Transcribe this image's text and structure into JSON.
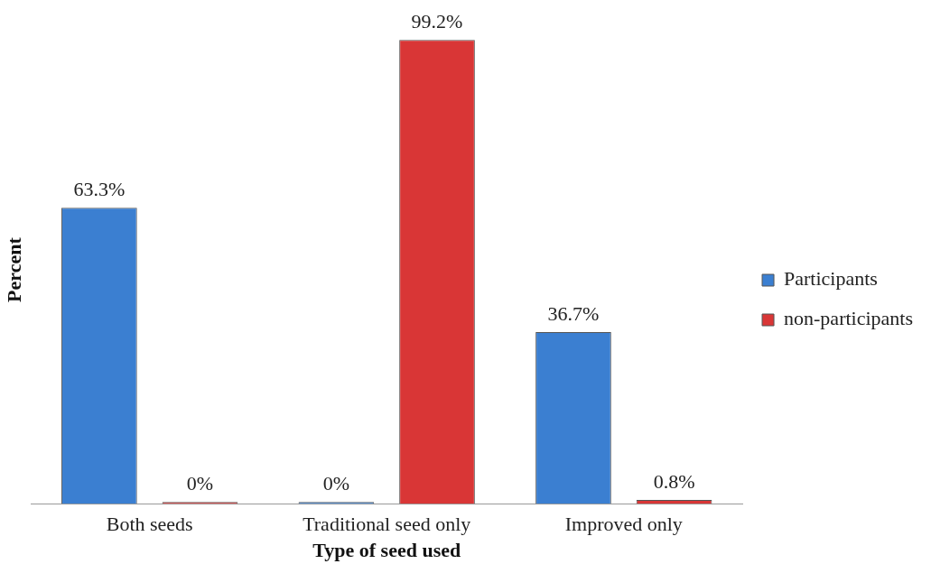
{
  "chart_data": {
    "type": "bar",
    "xlabel": "Type of seed used",
    "ylabel": "Percent",
    "categories": [
      "Both seeds",
      "Traditional seed only",
      "Improved only"
    ],
    "series": [
      {
        "name": "Participants",
        "color": "#3b7fd1",
        "values": [
          63.3,
          0,
          36.7
        ],
        "value_labels": [
          "63.3%",
          "0%",
          "36.7%"
        ]
      },
      {
        "name": "non-participants",
        "color": "#d93636",
        "values": [
          0,
          99.2,
          0.8
        ],
        "value_labels": [
          "0%",
          "99.2%",
          "0.8%"
        ]
      }
    ],
    "legend": "right",
    "grid": false
  }
}
